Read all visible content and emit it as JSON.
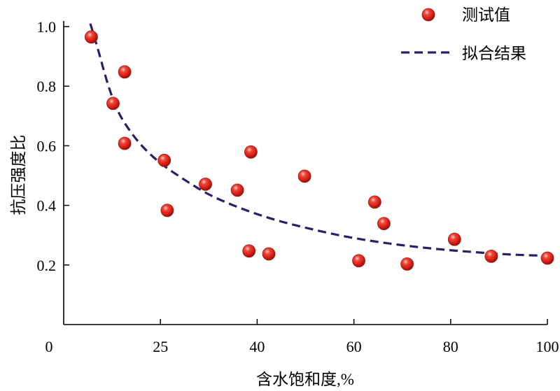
{
  "chart_data": {
    "type": "scatter",
    "xlabel": "含水饱和度,%",
    "ylabel": "抗压强度比",
    "xlim": [
      0,
      100
    ],
    "ylim": [
      0,
      1.0
    ],
    "x_ticks": [
      "0",
      "25",
      "40",
      "60",
      "80",
      "100"
    ],
    "y_ticks": [
      "0.2",
      "0.4",
      "0.6",
      "0.8",
      "1.0"
    ],
    "legend_position": "top-right",
    "series": [
      {
        "name": "测试值",
        "kind": "points",
        "color": "#e3221b",
        "points": [
          [
            5.7,
            0.965
          ],
          [
            10.2,
            0.742
          ],
          [
            12.6,
            0.848
          ],
          [
            12.6,
            0.608
          ],
          [
            20.8,
            0.551
          ],
          [
            21.4,
            0.383
          ],
          [
            29.3,
            0.471
          ],
          [
            35.9,
            0.451
          ],
          [
            38.7,
            0.579
          ],
          [
            38.3,
            0.247
          ],
          [
            42.4,
            0.237
          ],
          [
            49.8,
            0.498
          ],
          [
            61.0,
            0.214
          ],
          [
            64.3,
            0.411
          ],
          [
            66.2,
            0.339
          ],
          [
            71.0,
            0.203
          ],
          [
            80.8,
            0.286
          ],
          [
            88.4,
            0.229
          ],
          [
            100.0,
            0.223
          ]
        ]
      },
      {
        "name": "拟合结果",
        "kind": "curve",
        "color": "#2a1f6b",
        "points": [
          [
            5.5,
            1.01
          ],
          [
            7,
            0.93
          ],
          [
            9,
            0.81
          ],
          [
            11,
            0.72
          ],
          [
            13,
            0.665
          ],
          [
            16,
            0.6
          ],
          [
            20,
            0.54
          ],
          [
            25,
            0.485
          ],
          [
            30,
            0.435
          ],
          [
            35,
            0.4
          ],
          [
            40,
            0.37
          ],
          [
            45,
            0.345
          ],
          [
            50,
            0.325
          ],
          [
            55,
            0.306
          ],
          [
            60,
            0.29
          ],
          [
            65,
            0.277
          ],
          [
            70,
            0.266
          ],
          [
            75,
            0.257
          ],
          [
            80,
            0.249
          ],
          [
            85,
            0.243
          ],
          [
            90,
            0.237
          ],
          [
            95,
            0.233
          ],
          [
            100,
            0.231
          ]
        ]
      }
    ]
  }
}
